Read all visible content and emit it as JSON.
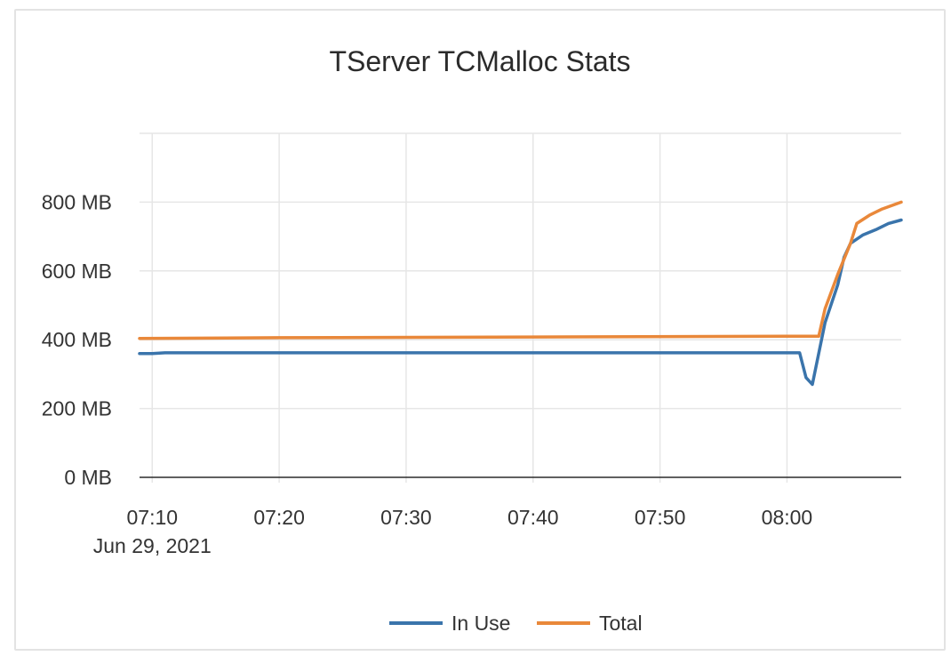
{
  "chart_data": {
    "type": "line",
    "title": "TServer TCMalloc Stats",
    "xlabel": "",
    "ylabel": "",
    "x_range": [
      "07:09",
      "08:09"
    ],
    "x_ticks": [
      {
        "time": "07:10",
        "label": "07:10",
        "sublabel": "Jun 29, 2021"
      },
      {
        "time": "07:20",
        "label": "07:20"
      },
      {
        "time": "07:30",
        "label": "07:30"
      },
      {
        "time": "07:40",
        "label": "07:40"
      },
      {
        "time": "07:50",
        "label": "07:50"
      },
      {
        "time": "08:00",
        "label": "08:00"
      }
    ],
    "ylim": [
      0,
      1000
    ],
    "y_ticks": [
      {
        "value": 0,
        "label": "0 MB"
      },
      {
        "value": 200,
        "label": "200 MB"
      },
      {
        "value": 400,
        "label": "400 MB"
      },
      {
        "value": 600,
        "label": "600 MB"
      },
      {
        "value": 800,
        "label": "800 MB"
      }
    ],
    "y_grid_values": [
      0,
      200,
      400,
      600,
      800,
      1000
    ],
    "grid": true,
    "legend_position": "bottom-center",
    "series": [
      {
        "name": "In Use",
        "color": "#3a74ab",
        "points": [
          [
            "07:09",
            360
          ],
          [
            "07:10",
            360
          ],
          [
            "07:11",
            362
          ],
          [
            "07:30",
            362
          ],
          [
            "07:50",
            362
          ],
          [
            "08:00",
            362
          ],
          [
            "08:01",
            362
          ],
          [
            "08:01:30",
            290
          ],
          [
            "08:02",
            270
          ],
          [
            "08:03",
            450
          ],
          [
            "08:04",
            560
          ],
          [
            "08:04:30",
            640
          ],
          [
            "08:05",
            680
          ],
          [
            "08:06",
            705
          ],
          [
            "08:07",
            720
          ],
          [
            "08:08",
            738
          ],
          [
            "08:09",
            748
          ]
        ]
      },
      {
        "name": "Total",
        "color": "#e9883a",
        "points": [
          [
            "07:09",
            404
          ],
          [
            "07:20",
            406
          ],
          [
            "07:40",
            408
          ],
          [
            "08:00",
            410
          ],
          [
            "08:02:30",
            410
          ],
          [
            "08:03",
            490
          ],
          [
            "08:04",
            590
          ],
          [
            "08:05",
            680
          ],
          [
            "08:05:30",
            738
          ],
          [
            "08:06:30",
            762
          ],
          [
            "08:07:30",
            780
          ],
          [
            "08:09",
            800
          ]
        ]
      }
    ]
  }
}
